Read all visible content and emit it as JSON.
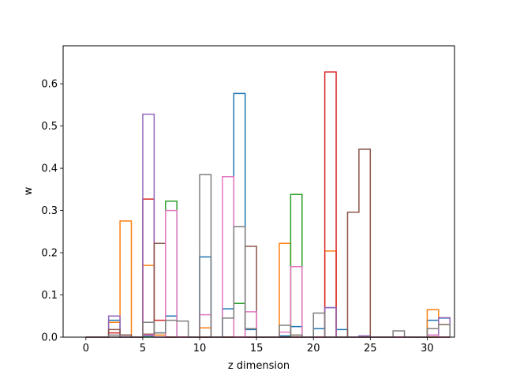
{
  "chart_data": {
    "type": "step-histogram",
    "title": "",
    "xlabel": "z dimension",
    "ylabel": "w",
    "xlim": [
      -2.0,
      32.4
    ],
    "ylim": [
      0,
      0.69
    ],
    "xticks": [
      0,
      5,
      10,
      15,
      20,
      25,
      30
    ],
    "yticks": [
      0.0,
      0.1,
      0.2,
      0.3,
      0.4,
      0.5,
      0.6
    ],
    "bin_width": 1,
    "grid": false,
    "legend": "none",
    "series": [
      {
        "color": "#1f77b4",
        "values": [
          0.0,
          0.0,
          0.04,
          0.005,
          0.0,
          0.003,
          0.01,
          0.05,
          0.0,
          0.0,
          0.19,
          0.0,
          0.067,
          0.577,
          0.018,
          0.0,
          0.0,
          0.003,
          0.025,
          0.0,
          0.02,
          0.07,
          0.018,
          0.0,
          0.0,
          0.0,
          0.0,
          0.0,
          0.0,
          0.0,
          0.04,
          0.045
        ]
      },
      {
        "color": "#ff7f0e",
        "values": [
          0.0,
          0.0,
          0.035,
          0.275,
          0.0,
          0.17,
          0.005,
          0.0,
          0.0,
          0.0,
          0.022,
          0.0,
          0.0,
          0.0,
          0.0,
          0.0,
          0.0,
          0.222,
          0.005,
          0.0,
          0.0,
          0.204,
          0.0,
          0.0,
          0.0,
          0.0,
          0.0,
          0.0,
          0.0,
          0.0,
          0.065,
          0.03
        ]
      },
      {
        "color": "#2ca02c",
        "values": [
          0.0,
          0.0,
          0.0,
          0.0,
          0.0,
          0.0,
          0.0,
          0.322,
          0.0,
          0.0,
          0.0,
          0.0,
          0.0,
          0.08,
          0.0,
          0.0,
          0.0,
          0.0,
          0.338,
          0.0,
          0.0,
          0.0,
          0.0,
          0.0,
          0.0,
          0.0,
          0.0,
          0.0,
          0.0,
          0.0,
          0.0,
          0.0
        ]
      },
      {
        "color": "#d62728",
        "values": [
          0.0,
          0.0,
          0.01,
          0.0,
          0.0,
          0.327,
          0.04,
          0.0,
          0.0,
          0.0,
          0.0,
          0.0,
          0.0,
          0.0,
          0.0,
          0.0,
          0.0,
          0.0,
          0.0,
          0.0,
          0.0,
          0.628,
          0.0,
          0.0,
          0.0,
          0.0,
          0.0,
          0.0,
          0.0,
          0.0,
          0.0,
          0.0
        ]
      },
      {
        "color": "#9467bd",
        "values": [
          0.0,
          0.0,
          0.05,
          0.0,
          0.0,
          0.528,
          0.0,
          0.0,
          0.0,
          0.0,
          0.0,
          0.0,
          0.0,
          0.0,
          0.0,
          0.0,
          0.0,
          0.0,
          0.0,
          0.0,
          0.0,
          0.07,
          0.0,
          0.0,
          0.003,
          0.0,
          0.0,
          0.0,
          0.0,
          0.0,
          0.005,
          0.046
        ]
      },
      {
        "color": "#8c564b",
        "values": [
          0.0,
          0.0,
          0.018,
          0.005,
          0.0,
          0.007,
          0.222,
          0.0,
          0.0,
          0.0,
          0.0,
          0.0,
          0.0,
          0.0,
          0.215,
          0.0,
          0.0,
          0.0,
          0.0,
          0.0,
          0.0,
          0.0,
          0.0,
          0.296,
          0.445,
          0.0,
          0.0,
          0.0,
          0.0,
          0.0,
          0.0,
          0.0
        ]
      },
      {
        "color": "#e377c2",
        "values": [
          0.0,
          0.0,
          0.0,
          0.0,
          0.0,
          0.005,
          0.0,
          0.3,
          0.0,
          0.0,
          0.053,
          0.0,
          0.38,
          0.0,
          0.06,
          0.0,
          0.0,
          0.012,
          0.167,
          0.0,
          0.0,
          0.0,
          0.0,
          0.0,
          0.0,
          0.0,
          0.0,
          0.0,
          0.0,
          0.0,
          0.005,
          0.0
        ]
      },
      {
        "color": "#7f7f7f",
        "values": [
          0.0,
          0.0,
          0.005,
          0.0,
          0.0,
          0.035,
          0.01,
          0.04,
          0.038,
          0.0,
          0.385,
          0.0,
          0.045,
          0.262,
          0.02,
          0.0,
          0.0,
          0.028,
          0.005,
          0.0,
          0.057,
          0.0,
          0.0,
          0.0,
          0.0,
          0.0,
          0.0,
          0.015,
          0.0,
          0.0,
          0.02,
          0.03
        ]
      }
    ]
  }
}
